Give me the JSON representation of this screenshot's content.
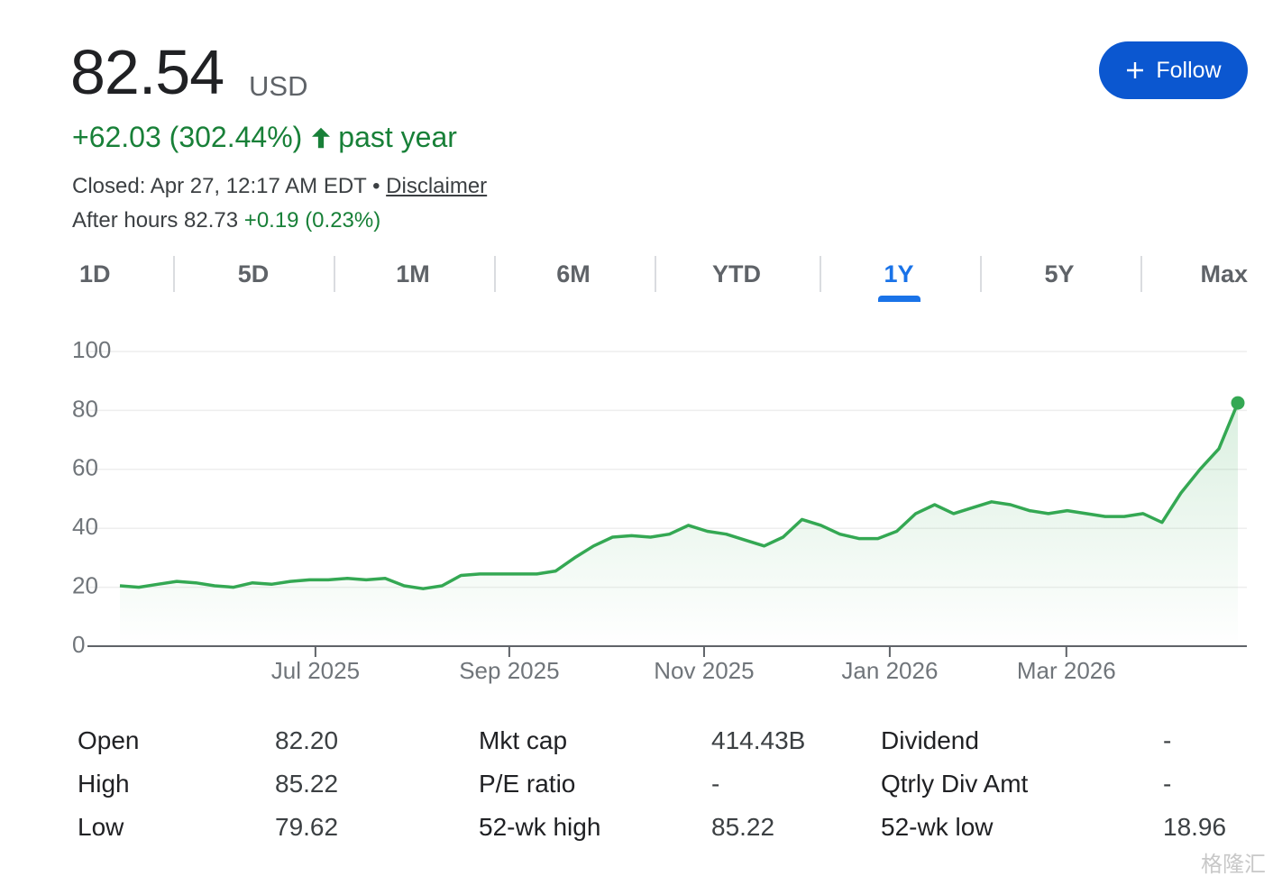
{
  "header": {
    "price": "82.54",
    "currency": "USD",
    "change": "+62.03 (302.44%)",
    "change_period": "past year",
    "closed": "Closed: Apr 27, 12:17 AM EDT",
    "separator": "•",
    "disclaimer": "Disclaimer",
    "after_hours": "After hours 82.73",
    "after_hours_change": "+0.19 (0.23%)",
    "follow": "Follow"
  },
  "tabs": [
    "1D",
    "5D",
    "1M",
    "6M",
    "YTD",
    "1Y",
    "5Y",
    "Max"
  ],
  "selected_tab": "1Y",
  "chart_data": {
    "type": "line",
    "color": "#34a853",
    "grid": true,
    "values": [
      20.5,
      20,
      21,
      22,
      21.5,
      20.5,
      20,
      21.5,
      21,
      22,
      22.5,
      22.5,
      23,
      22.5,
      23,
      20.5,
      19.5,
      20.5,
      24,
      24.5,
      24.5,
      24.5,
      24.5,
      25.5,
      30,
      34,
      37,
      37.5,
      37,
      38,
      41,
      39,
      38,
      36,
      34,
      37,
      43,
      41,
      38,
      36.5,
      36.5,
      39,
      45,
      48,
      45,
      47,
      49,
      48,
      46,
      45,
      46,
      45,
      44,
      44,
      45,
      42,
      52,
      60,
      67,
      82.54
    ],
    "ylim": [
      0,
      100
    ],
    "yticks": [
      0,
      20,
      40,
      60,
      80,
      100
    ],
    "xlim": [
      0,
      59
    ],
    "xticks": [
      {
        "value": 10.32,
        "label": "Jul 2025"
      },
      {
        "value": 20.55,
        "label": "Sep 2025"
      },
      {
        "value": 30.83,
        "label": "Nov 2025"
      },
      {
        "value": 40.63,
        "label": "Jan 2026"
      },
      {
        "value": 49.95,
        "label": "Mar 2026"
      }
    ]
  },
  "stats": {
    "rows": [
      [
        "Open",
        "82.20",
        "Mkt cap",
        "414.43B",
        "Dividend",
        "-"
      ],
      [
        "High",
        "85.22",
        "P/E ratio",
        "-",
        "Qtrly Div Amt",
        "-"
      ],
      [
        "Low",
        "79.62",
        "52-wk high",
        "85.22",
        "52-wk low",
        "18.96"
      ]
    ]
  },
  "watermark": "格隆汇"
}
